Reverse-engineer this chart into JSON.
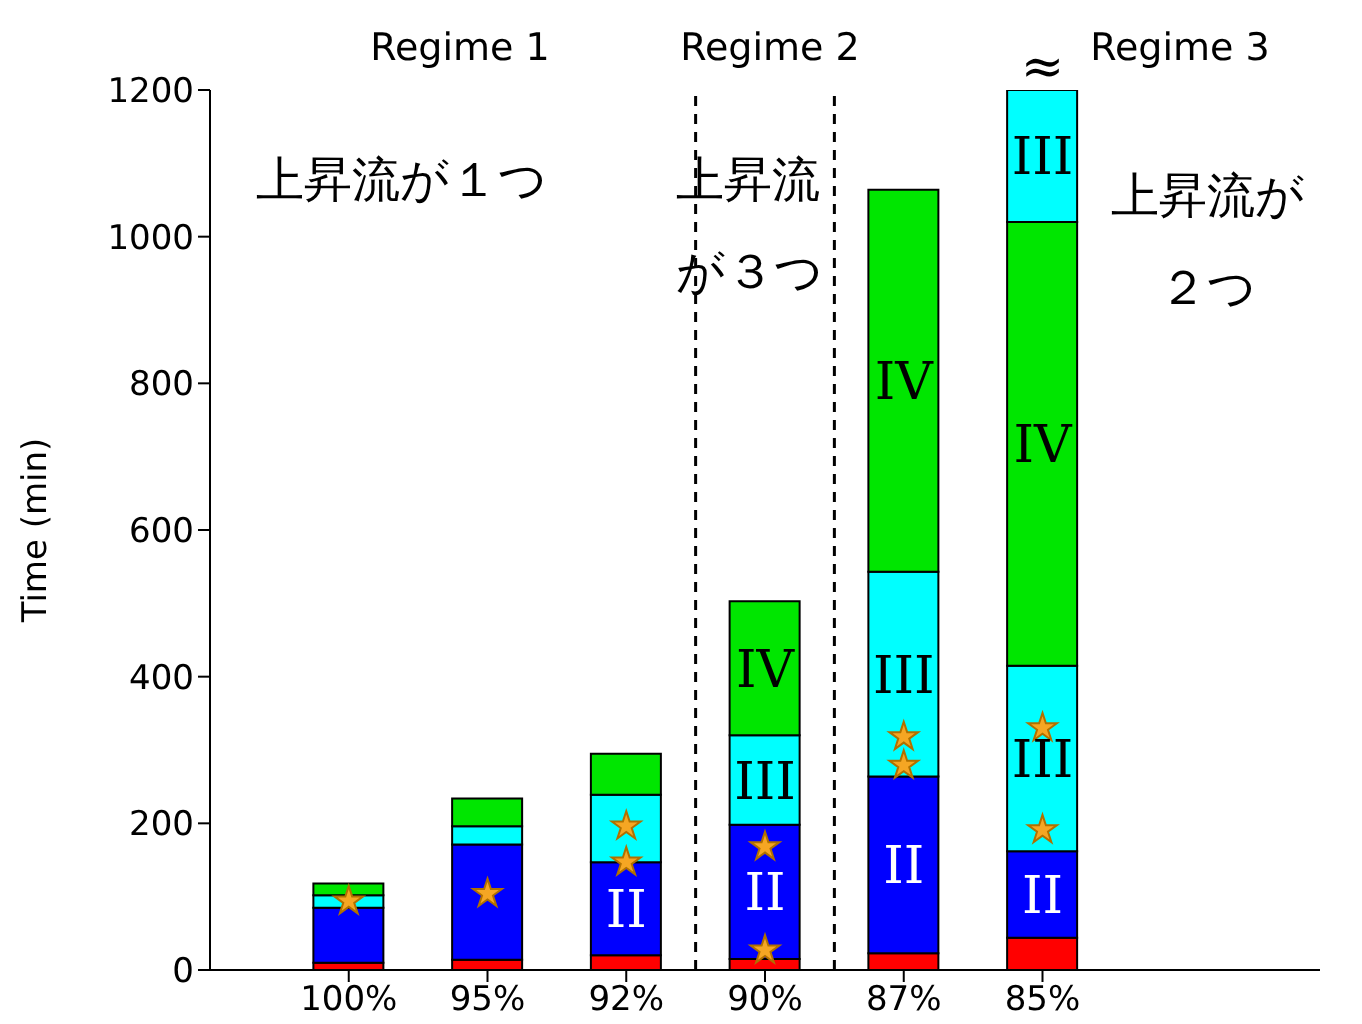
{
  "chart_data": {
    "type": "bar",
    "stacked": true,
    "ylabel": "Time (min)",
    "categories": [
      "100%",
      "95%",
      "92%",
      "90%",
      "87%",
      "85%"
    ],
    "ylim": [
      0,
      1200
    ],
    "yticks": [
      0,
      200,
      400,
      600,
      800,
      1000,
      1200
    ],
    "series": [
      {
        "color": "#ff0000",
        "values": [
          10,
          14,
          20,
          15,
          23,
          44
        ]
      },
      {
        "color": "#0000ff",
        "values": [
          75,
          157,
          127,
          183,
          241,
          118
        ]
      },
      {
        "color": "#00ffff",
        "values": [
          17,
          25,
          92,
          122,
          279,
          253
        ]
      },
      {
        "color": "#00e600",
        "values": [
          16,
          38,
          56,
          183,
          521,
          605
        ]
      },
      {
        "color": "#00ffff",
        "values": [
          null,
          null,
          null,
          null,
          null,
          180
        ]
      },
      {
        "type": "scatter",
        "color": "#f5a623",
        "marker": "star",
        "x": [
          "100%",
          "95%",
          "92%",
          "92%",
          "90%",
          "90%",
          "87%",
          "87%",
          "85%",
          "85%"
        ],
        "values": [
          94,
          104,
          196,
          147,
          168,
          27,
          318,
          279,
          330,
          191
        ]
      }
    ],
    "annotations": [
      "Regime 1",
      "Regime 2",
      "Regime 3",
      "上昇流が１つ",
      "上昇流が３つ",
      "上昇流が２つ",
      {
        "text": "≈",
        "x": "85%",
        "y": 1200
      },
      "II",
      "II",
      "III",
      "IV",
      "II",
      "III",
      "IV",
      "II",
      "III",
      "IV",
      "III"
    ]
  }
}
